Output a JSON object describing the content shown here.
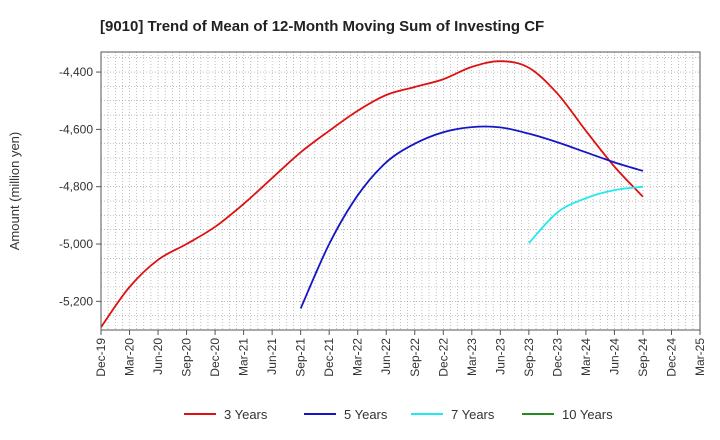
{
  "chart_data": {
    "type": "line",
    "title": "[9010]  Trend of Mean of 12-Month Moving Sum of Investing CF",
    "xlabel": "",
    "ylabel": "Amount (million yen)",
    "x_ticks": [
      "Dec-19",
      "Mar-20",
      "Jun-20",
      "Sep-20",
      "Dec-20",
      "Mar-21",
      "Jun-21",
      "Sep-21",
      "Dec-21",
      "Mar-22",
      "Jun-22",
      "Sep-22",
      "Dec-22",
      "Mar-23",
      "Jun-23",
      "Sep-23",
      "Dec-23",
      "Mar-24",
      "Jun-24",
      "Sep-24",
      "Dec-24",
      "Mar-25"
    ],
    "y_ticks": [
      -4400,
      -4600,
      -4800,
      -5000,
      -5200
    ],
    "y_tick_labels": [
      "-4,400",
      "-4,600",
      "-4,800",
      "-5,000",
      "-5,200"
    ],
    "ylim": [
      -5300,
      -4330
    ],
    "xlim": [
      "Dec-19",
      "Mar-25"
    ],
    "grid": true,
    "legend_position": "bottom",
    "series": [
      {
        "name": "3 Years",
        "color": "#dd1111",
        "points": [
          [
            "Dec-19",
            -5290
          ],
          [
            "Mar-20",
            -5150
          ],
          [
            "Jun-20",
            -5055
          ],
          [
            "Sep-20",
            -5000
          ],
          [
            "Dec-20",
            -4940
          ],
          [
            "Mar-21",
            -4860
          ],
          [
            "Jun-21",
            -4770
          ],
          [
            "Sep-21",
            -4680
          ],
          [
            "Dec-21",
            -4605
          ],
          [
            "Mar-22",
            -4535
          ],
          [
            "Jun-22",
            -4480
          ],
          [
            "Sep-22",
            -4452
          ],
          [
            "Dec-22",
            -4425
          ],
          [
            "Mar-23",
            -4382
          ],
          [
            "Jun-23",
            -4362
          ],
          [
            "Sep-23",
            -4385
          ],
          [
            "Dec-23",
            -4475
          ],
          [
            "Mar-24",
            -4605
          ],
          [
            "Jun-24",
            -4730
          ],
          [
            "Sep-24",
            -4835
          ]
        ]
      },
      {
        "name": "5 Years",
        "color": "#1515c8",
        "points": [
          [
            "Sep-21",
            -5225
          ],
          [
            "Dec-21",
            -5000
          ],
          [
            "Mar-22",
            -4830
          ],
          [
            "Jun-22",
            -4715
          ],
          [
            "Sep-22",
            -4650
          ],
          [
            "Dec-22",
            -4610
          ],
          [
            "Mar-23",
            -4592
          ],
          [
            "Jun-23",
            -4593
          ],
          [
            "Sep-23",
            -4615
          ],
          [
            "Dec-23",
            -4645
          ],
          [
            "Mar-24",
            -4680
          ],
          [
            "Jun-24",
            -4715
          ],
          [
            "Sep-24",
            -4745
          ]
        ]
      },
      {
        "name": "7 Years",
        "color": "#22e8f0",
        "points": [
          [
            "Sep-23",
            -4997
          ],
          [
            "Dec-23",
            -4890
          ],
          [
            "Mar-24",
            -4840
          ],
          [
            "Jun-24",
            -4812
          ],
          [
            "Sep-24",
            -4800
          ]
        ]
      },
      {
        "name": "10 Years",
        "color": "#228b22",
        "points": []
      }
    ]
  }
}
